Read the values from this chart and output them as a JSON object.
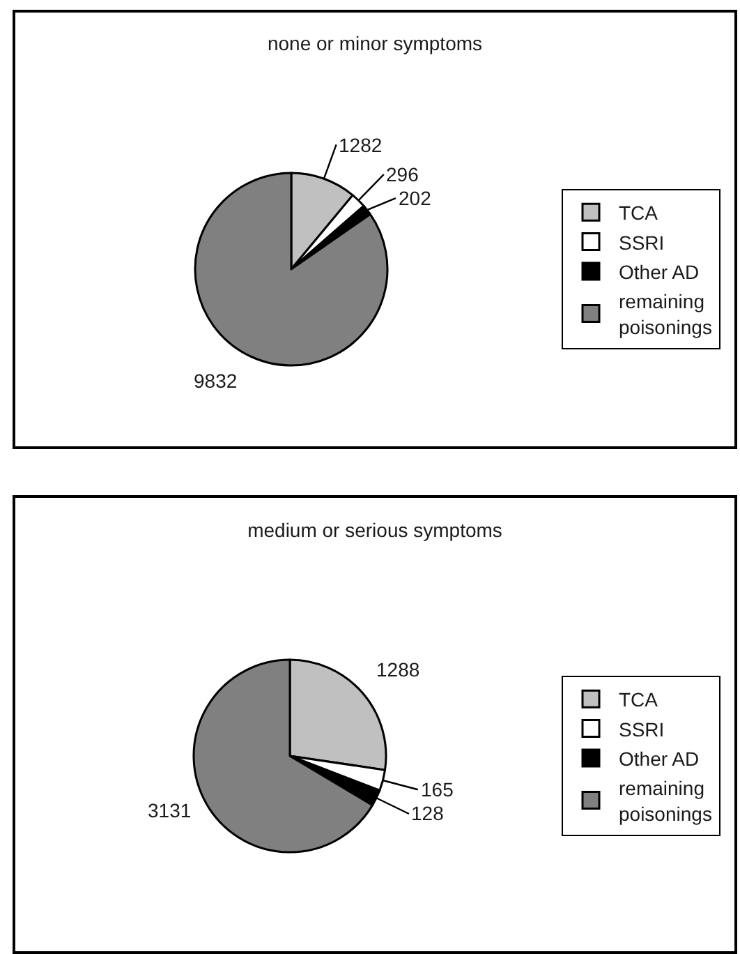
{
  "chart_data": [
    {
      "type": "pie",
      "title": "none or minor symptoms",
      "categories": [
        "TCA",
        "SSRI",
        "Other AD",
        "remaining poisonings"
      ],
      "values": [
        1282,
        296,
        202,
        9832
      ],
      "colors": [
        "#c0c0c0",
        "#ffffff",
        "#000000",
        "#808080"
      ],
      "data_labels": true,
      "legend": "right"
    },
    {
      "type": "pie",
      "title": "medium or serious symptoms",
      "categories": [
        "TCA",
        "SSRI",
        "Other AD",
        "remaining poisonings"
      ],
      "values": [
        1288,
        165,
        128,
        3131
      ],
      "colors": [
        "#c0c0c0",
        "#ffffff",
        "#000000",
        "#808080"
      ],
      "data_labels": true,
      "legend": "right"
    }
  ]
}
